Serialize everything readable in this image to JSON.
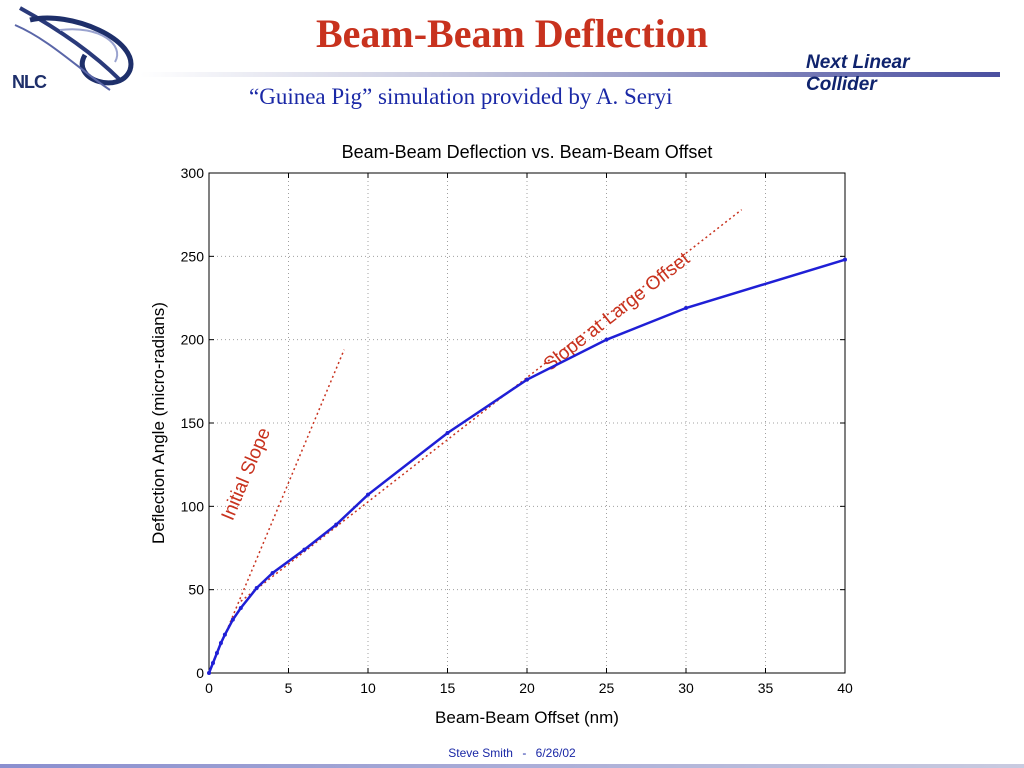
{
  "slide": {
    "title": "Beam-Beam Deflection",
    "subtitle": "“Guinea Pig” simulation provided by A. Seryi",
    "brand_line1": "Next Linear",
    "brand_line2": "Collider",
    "logo_text": "NLC",
    "footer_author": "Steve Smith",
    "footer_separator": "-",
    "footer_date": "6/26/02"
  },
  "colors": {
    "title": "#c8321e",
    "subtitle": "#1a28a6",
    "brand": "#10246e",
    "series": "#1f1fd6",
    "annotation": "#c8321e"
  },
  "chart_data": {
    "type": "line",
    "title": "Beam-Beam Deflection vs. Beam-Beam Offset",
    "xlabel": "Beam-Beam Offset (nm)",
    "ylabel": "Deflection Angle (micro-radians)",
    "xlim": [
      0,
      40
    ],
    "ylim": [
      0,
      300
    ],
    "xticks": [
      0,
      5,
      10,
      15,
      20,
      25,
      30,
      35,
      40
    ],
    "yticks": [
      0,
      50,
      100,
      150,
      200,
      250,
      300
    ],
    "grid": true,
    "series": [
      {
        "x": [
          0,
          0.25,
          0.5,
          0.75,
          1,
          1.5,
          2,
          3,
          4,
          6,
          8,
          10,
          15,
          20,
          25,
          30,
          40
        ],
        "y": [
          0,
          6,
          12,
          18,
          23,
          32,
          39,
          51,
          60,
          74,
          89,
          107,
          144,
          176,
          200,
          219,
          248
        ]
      }
    ],
    "reference_lines": [
      {
        "label": "Initial Slope",
        "x": [
          0,
          8.5
        ],
        "y": [
          0,
          194
        ]
      },
      {
        "label": "Slope at Large Offset",
        "x": [
          2,
          33.5
        ],
        "y": [
          43,
          278
        ]
      }
    ]
  }
}
